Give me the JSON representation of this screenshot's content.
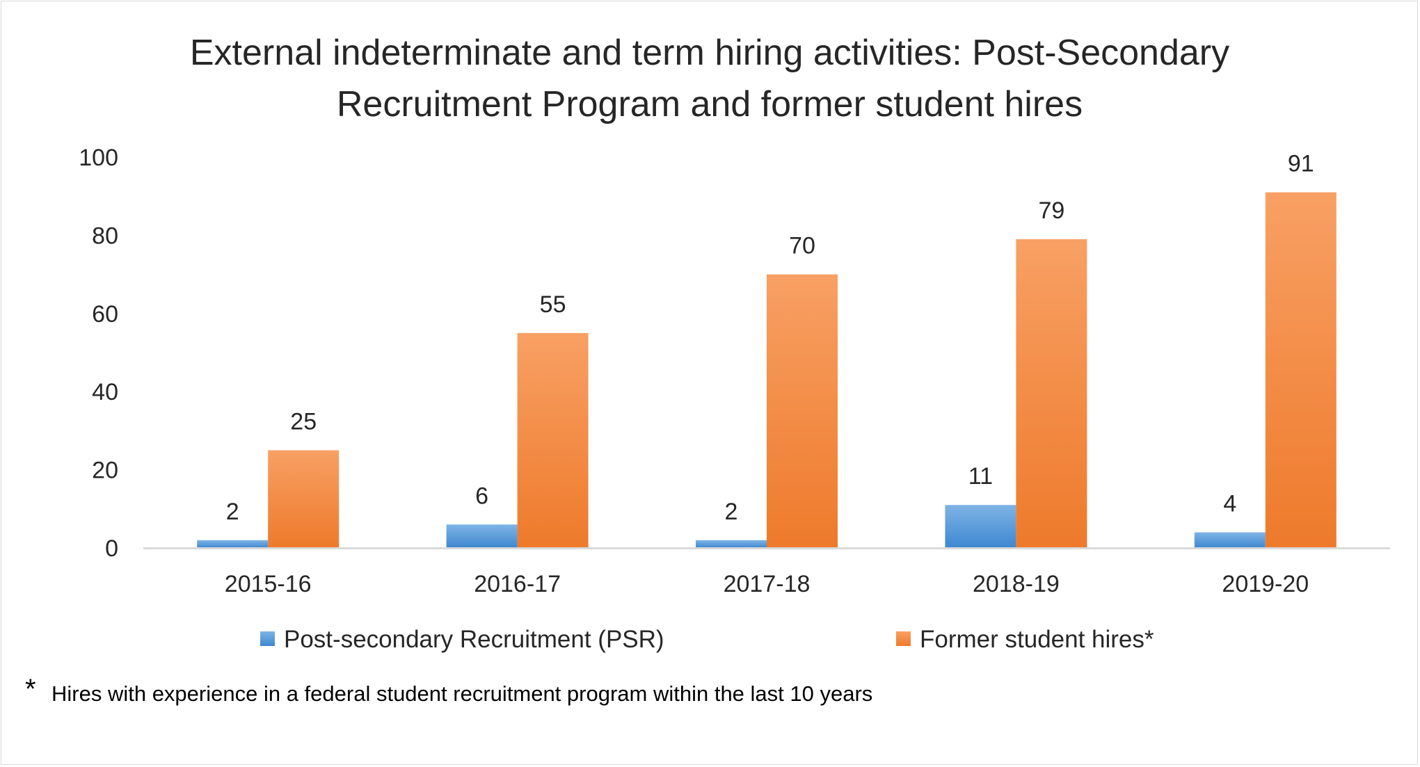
{
  "chart_data": {
    "type": "bar",
    "title_lines": [
      "External indeterminate and term hiring activities: Post-Secondary",
      "Recruitment Program and former student hires"
    ],
    "categories": [
      "2015-16",
      "2016-17",
      "2017-18",
      "2018-19",
      "2019-20"
    ],
    "series": [
      {
        "name": "Post-secondary Recruitment (PSR)",
        "values": [
          2,
          6,
          2,
          11,
          4
        ],
        "color": "#5b9bd5",
        "gradient_light": "#7fb4e6",
        "gradient_dark": "#3d87d0"
      },
      {
        "name": "Former student hires*",
        "values": [
          25,
          55,
          70,
          79,
          91
        ],
        "color": "#ed7d31",
        "gradient_light": "#f8a064",
        "gradient_dark": "#ee7a2b"
      }
    ],
    "ylim": [
      0,
      100
    ],
    "yticks": [
      0,
      20,
      40,
      60,
      80,
      100
    ],
    "grid": false,
    "legend_position": "bottom"
  },
  "footnote": {
    "marker": "*",
    "text": "Hires with experience in a federal student recruitment program within the last 10 years"
  }
}
